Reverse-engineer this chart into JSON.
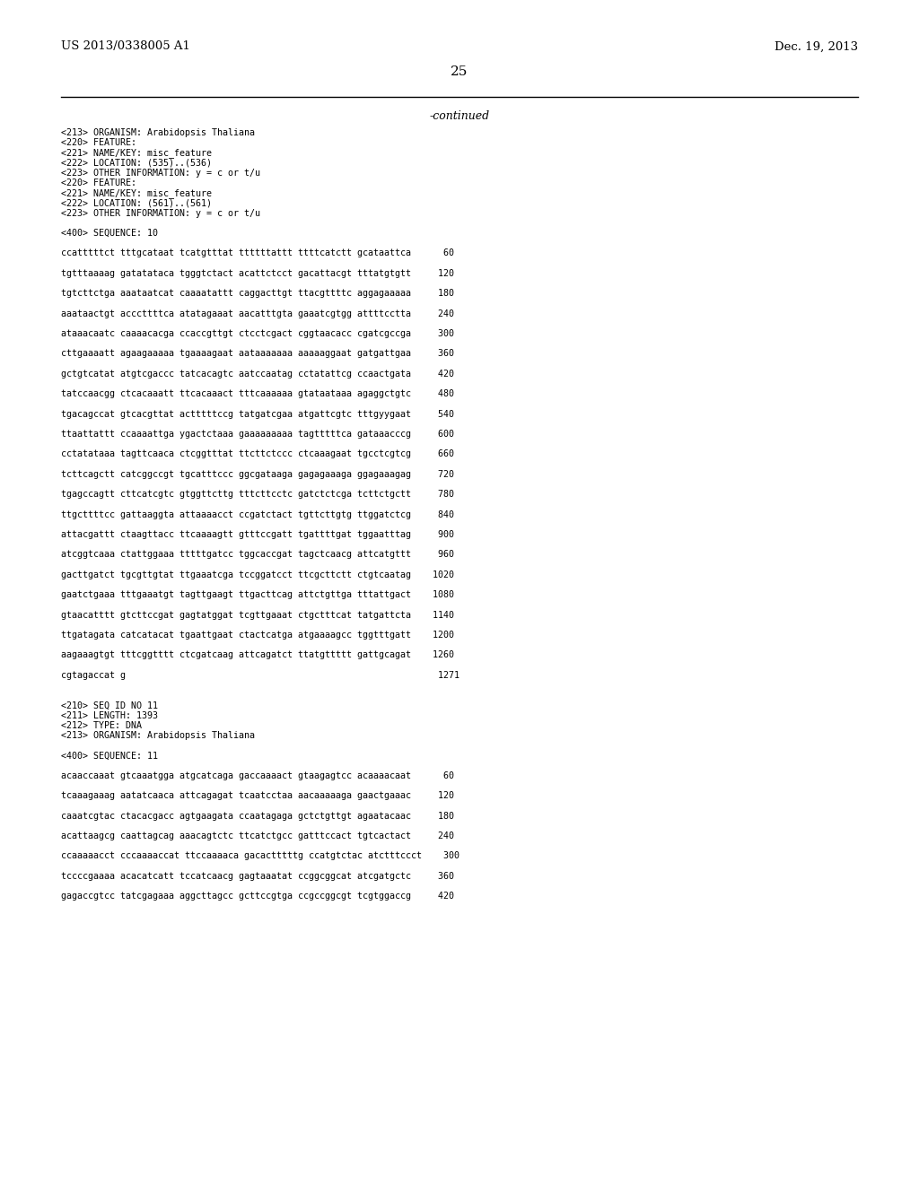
{
  "background_color": "#ffffff",
  "header_left": "US 2013/0338005 A1",
  "header_right": "Dec. 19, 2013",
  "page_number": "25",
  "continued_text": "-continued",
  "mono_font": "DejaVu Sans Mono",
  "serif_font": "DejaVu Serif",
  "header_fontsize": 9.5,
  "page_num_fontsize": 11,
  "continued_fontsize": 9,
  "body_fontsize": 7.2,
  "body_lines": [
    "<213> ORGANISM: Arabidopsis Thaliana",
    "<220> FEATURE:",
    "<221> NAME/KEY: misc_feature",
    "<222> LOCATION: (535)..(536)",
    "<223> OTHER INFORMATION: y = c or t/u",
    "<220> FEATURE:",
    "<221> NAME/KEY: misc_feature",
    "<222> LOCATION: (561)..(561)",
    "<223> OTHER INFORMATION: y = c or t/u",
    "",
    "<400> SEQUENCE: 10",
    "",
    "ccatttttct tttgcataat tcatgtttat ttttttattt ttttcatctt gcataattca      60",
    "",
    "tgtttaaaag gatatataca tgggtctact acattctcct gacattacgt tttatgtgtt     120",
    "",
    "tgtcttctga aaataatcat caaaatattt caggacttgt ttacgttttc aggagaaaaa     180",
    "",
    "aaataactgt acccttttca atatagaaat aacatttgta gaaatcgtgg attttcctta     240",
    "",
    "ataaacaatc caaaacacga ccaccgttgt ctcctcgact cggtaacacc cgatcgccga     300",
    "",
    "cttgaaaatt agaagaaaaa tgaaaagaat aataaaaaaa aaaaaggaat gatgattgaa     360",
    "",
    "gctgtcatat atgtcgaccc tatcacagtc aatccaatag cctatattcg ccaactgata     420",
    "",
    "tatccaacgg ctcacaaatt ttcacaaact tttcaaaaaa gtataataaa agaggctgtc     480",
    "",
    "tgacagccat gtcacgttat actttttccg tatgatcgaa atgattcgtc tttgyygaat     540",
    "",
    "ttaattattt ccaaaattga ygactctaaa gaaaaaaaaa tagtttttca gataaacccg     600",
    "",
    "cctatataaa tagttcaaca ctcggtttat ttcttctccc ctcaaagaat tgcctcgtcg     660",
    "",
    "tcttcagctt catcggccgt tgcatttccc ggcgataaga gagagaaaga ggagaaagag     720",
    "",
    "tgagccagtt cttcatcgtc gtggttcttg tttcttcctc gatctctcga tcttctgctt     780",
    "",
    "ttgcttttcc gattaaggta attaaaacct ccgatctact tgttcttgtg ttggatctcg     840",
    "",
    "attacgattt ctaagttacc ttcaaaagtt gtttccgatt tgattttgat tggaatttag     900",
    "",
    "atcggtcaaa ctattggaaa tttttgatcc tggcaccgat tagctcaacg attcatgttt     960",
    "",
    "gacttgatct tgcgttgtat ttgaaatcga tccggatcct ttcgcttctt ctgtcaatag    1020",
    "",
    "gaatctgaaa tttgaaatgt tagttgaagt ttgacttcag attctgttga tttattgact    1080",
    "",
    "gtaacatttt gtcttccgat gagtatggat tcgttgaaat ctgctttcat tatgattcta    1140",
    "",
    "ttgatagata catcatacat tgaattgaat ctactcatga atgaaaagcc tggtttgatt    1200",
    "",
    "aagaaagtgt tttcggtttt ctcgatcaag attcagatct ttatgttttt gattgcagat    1260",
    "",
    "cgtagaccat g                                                          1271",
    "",
    "",
    "<210> SEQ ID NO 11",
    "<211> LENGTH: 1393",
    "<212> TYPE: DNA",
    "<213> ORGANISM: Arabidopsis Thaliana",
    "",
    "<400> SEQUENCE: 11",
    "",
    "acaaccaaat gtcaaatgga atgcatcaga gaccaaaact gtaagagtcc acaaaacaat      60",
    "",
    "tcaaagaaag aatatcaaca attcagagat tcaatcctaa aacaaaaaga gaactgaaac     120",
    "",
    "caaatcgtac ctacacgacc agtgaagata ccaatagaga gctctgttgt agaatacaac     180",
    "",
    "acattaagcg caattagcag aaacagtctc ttcatctgcc gatttccact tgtcactact     240",
    "",
    "ccaaaaacct cccaaaaccat ttccaaaaca gacactttttg ccatgtctac atctttccct    300",
    "",
    "tccccgaaaa acacatcatt tccatcaacg gagtaaatat ccggcggcat atcgatgctc     360",
    "",
    "gagaccgtcc tatcgagaaa aggcttagcc gcttccgtga ccgccggcgt tcgtggaccg     420"
  ]
}
